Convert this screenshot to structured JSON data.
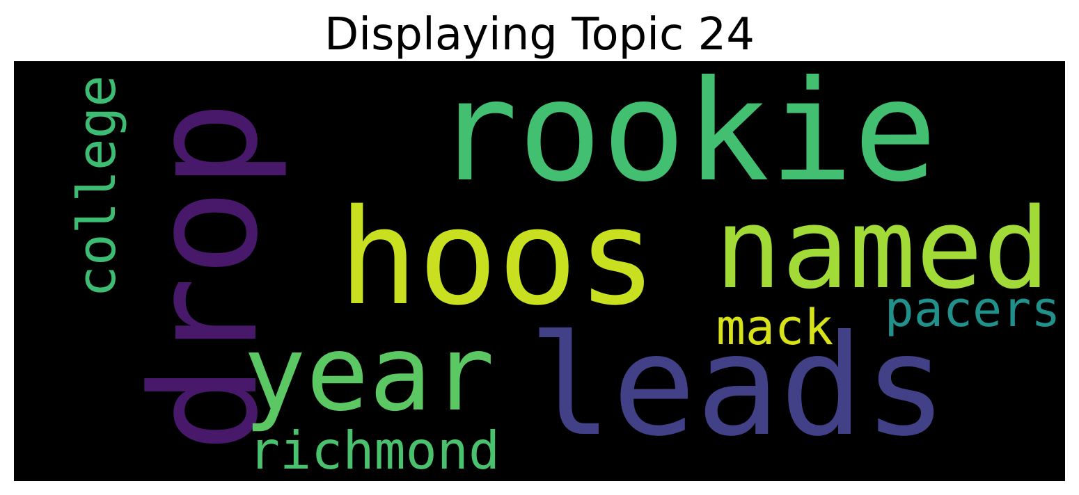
{
  "title": "Displaying Topic 24",
  "words": [
    {
      "text": "rookie",
      "color": "#43BF71"
    },
    {
      "text": "hoos",
      "color": "#C8E020"
    },
    {
      "text": "named",
      "color": "#A2DA37"
    },
    {
      "text": "leads",
      "color": "#424086"
    },
    {
      "text": "drop",
      "color": "#48186A"
    },
    {
      "text": "year",
      "color": "#5CC863"
    },
    {
      "text": "college",
      "color": "#3DBC74"
    },
    {
      "text": "mack",
      "color": "#D8E219"
    },
    {
      "text": "pacers",
      "color": "#21918C"
    },
    {
      "text": "richmond",
      "color": "#4AC16D"
    }
  ],
  "background_color": "#000000"
}
